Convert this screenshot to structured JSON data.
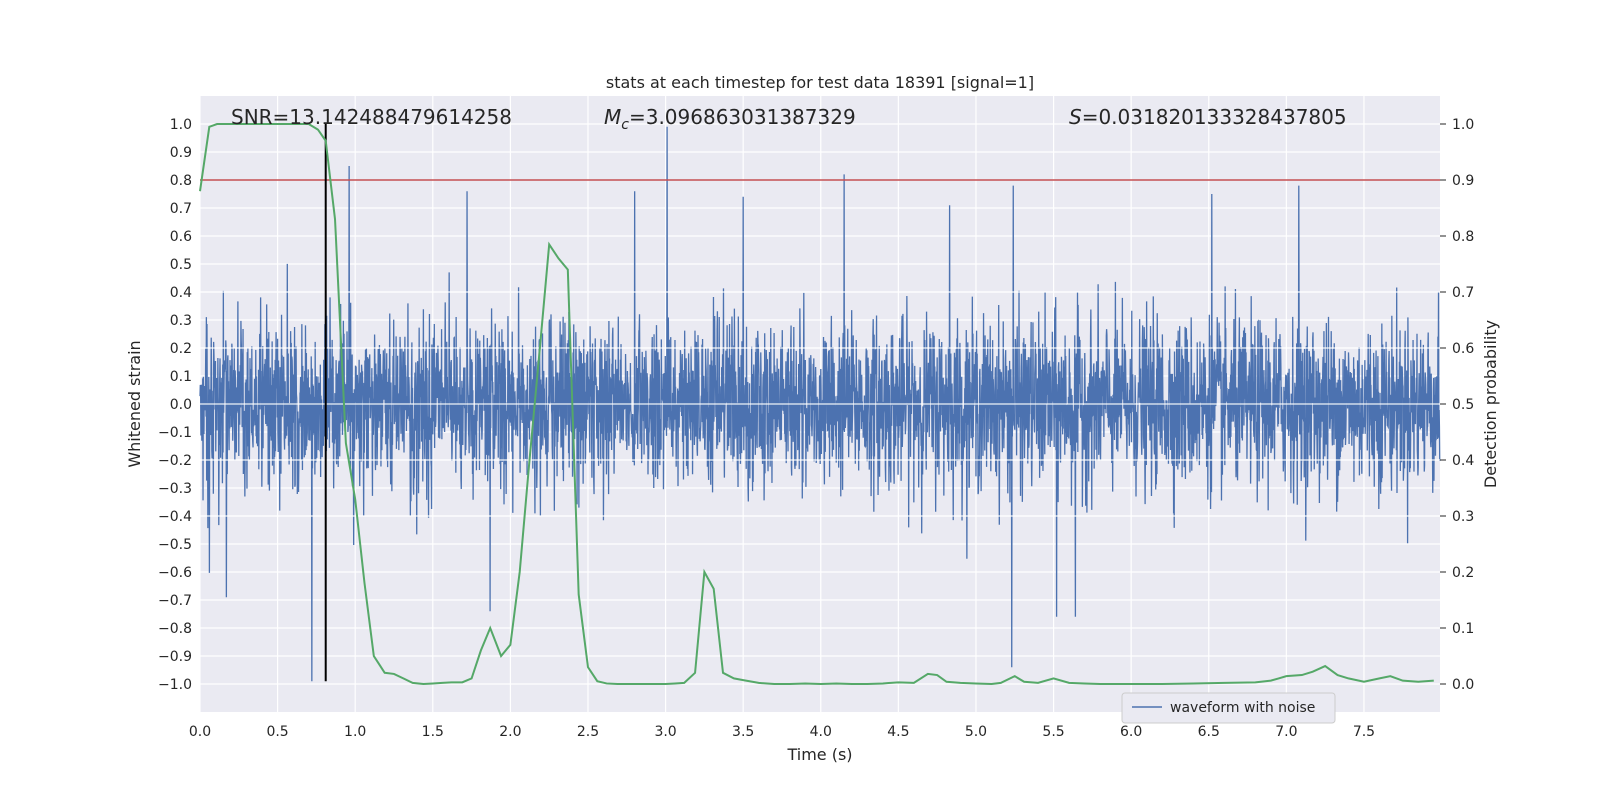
{
  "chart_data": {
    "type": "line",
    "title": "stats at each timestep for test data 18391 [signal=1]",
    "xlabel": "Time (s)",
    "ylabel_left": "Whitened strain",
    "ylabel_right": "Detection probability",
    "xlim": [
      0,
      7.99
    ],
    "ylim_left": [
      -1.1,
      1.1
    ],
    "ylim_right": [
      -0.05,
      1.05
    ],
    "x_ticks": [
      0.0,
      0.5,
      1.0,
      1.5,
      2.0,
      2.5,
      3.0,
      3.5,
      4.0,
      4.5,
      5.0,
      5.5,
      6.0,
      6.5,
      7.0,
      7.5
    ],
    "y_ticks_left": [
      1.0,
      0.9,
      0.8,
      0.7,
      0.6,
      0.5,
      0.4,
      0.3,
      0.2,
      0.1,
      0.0,
      -0.1,
      -0.2,
      -0.3,
      -0.4,
      -0.5,
      -0.6,
      -0.7,
      -0.8,
      -0.9,
      -1.0
    ],
    "y_ticks_right": [
      1.0,
      0.9,
      0.8,
      0.7,
      0.6,
      0.5,
      0.4,
      0.3,
      0.2,
      0.1,
      0.0
    ],
    "grid": true,
    "legend": {
      "placement": "lower-right",
      "entries": [
        "waveform with noise"
      ]
    },
    "annotations": {
      "snr": "SNR=13.142488479614258",
      "mc_symbol": "M",
      "mc_sub": "c",
      "mc_value": "=3.096863031387329",
      "s_symbol": "S",
      "s_value": "=0.031820133328437805"
    },
    "threshold": {
      "axis": "left",
      "y": 0.8,
      "color": "#c44e52"
    },
    "marker_line": {
      "x": 0.81,
      "y_range": [
        -0.99,
        1.0
      ],
      "color": "#000000"
    },
    "series": [
      {
        "name": "waveform with noise",
        "axis": "left",
        "color": "#4c72b0",
        "description_of_envelope": "dense whitened strain noise, typical amplitude about ±0.35",
        "samples_per_second": 512,
        "typical_amplitude": 0.35,
        "spikes": [
          {
            "x": 0.72,
            "y": -0.99
          },
          {
            "x": 0.81,
            "y": 0.47
          },
          {
            "x": 0.96,
            "y": 0.85
          },
          {
            "x": 1.72,
            "y": 0.76
          },
          {
            "x": 1.87,
            "y": -0.74
          },
          {
            "x": 2.8,
            "y": 0.76
          },
          {
            "x": 3.01,
            "y": 0.99
          },
          {
            "x": 3.5,
            "y": 0.74
          },
          {
            "x": 4.15,
            "y": 0.82
          },
          {
            "x": 4.83,
            "y": 0.71
          },
          {
            "x": 5.24,
            "y": 0.78
          },
          {
            "x": 5.23,
            "y": -0.94
          },
          {
            "x": 5.52,
            "y": -0.76
          },
          {
            "x": 5.64,
            "y": -0.76
          },
          {
            "x": 6.52,
            "y": 0.75
          },
          {
            "x": 7.08,
            "y": 0.78
          },
          {
            "x": 0.17,
            "y": -0.69
          }
        ]
      },
      {
        "axis": "right",
        "color": "#55a868",
        "x": [
          0.0,
          0.06,
          0.11,
          0.2,
          0.3,
          0.4,
          0.5,
          0.6,
          0.7,
          0.76,
          0.81,
          0.87,
          0.94,
          1.0,
          1.06,
          1.12,
          1.19,
          1.25,
          1.31,
          1.37,
          1.44,
          1.5,
          1.56,
          1.62,
          1.69,
          1.75,
          1.81,
          1.87,
          1.94,
          2.0,
          2.06,
          2.12,
          2.19,
          2.25,
          2.31,
          2.37,
          2.44,
          2.5,
          2.56,
          2.62,
          2.69,
          2.75,
          2.81,
          2.87,
          2.94,
          3.0,
          3.06,
          3.12,
          3.19,
          3.25,
          3.31,
          3.37,
          3.44,
          3.5,
          3.6,
          3.7,
          3.8,
          3.9,
          4.0,
          4.1,
          4.2,
          4.3,
          4.4,
          4.5,
          4.6,
          4.69,
          4.75,
          4.81,
          4.9,
          5.0,
          5.1,
          5.16,
          5.25,
          5.31,
          5.4,
          5.5,
          5.6,
          5.7,
          5.8,
          5.9,
          6.0,
          6.2,
          6.4,
          6.6,
          6.8,
          6.9,
          6.95,
          7.0,
          7.1,
          7.17,
          7.25,
          7.33,
          7.4,
          7.5,
          7.6,
          7.67,
          7.75,
          7.85,
          7.95
        ],
        "y": [
          0.88,
          0.995,
          1.0,
          1.0,
          1.0,
          1.0,
          1.0,
          1.0,
          1.0,
          0.99,
          0.97,
          0.83,
          0.43,
          0.33,
          0.18,
          0.05,
          0.02,
          0.018,
          0.01,
          0.002,
          0.0,
          0.001,
          0.002,
          0.003,
          0.003,
          0.01,
          0.06,
          0.1,
          0.05,
          0.07,
          0.2,
          0.39,
          0.6,
          0.785,
          0.76,
          0.74,
          0.16,
          0.03,
          0.005,
          0.001,
          0.0,
          0.0,
          0.0,
          0.0,
          0.0,
          0.0,
          0.001,
          0.002,
          0.02,
          0.2,
          0.17,
          0.02,
          0.01,
          0.007,
          0.002,
          0.0,
          0.0,
          0.001,
          0.0,
          0.001,
          0.0,
          0.0,
          0.001,
          0.003,
          0.002,
          0.018,
          0.016,
          0.004,
          0.002,
          0.001,
          0.0,
          0.002,
          0.014,
          0.004,
          0.002,
          0.01,
          0.002,
          0.001,
          0.0,
          0.0,
          0.0,
          0.0,
          0.001,
          0.002,
          0.003,
          0.006,
          0.01,
          0.014,
          0.016,
          0.022,
          0.032,
          0.016,
          0.01,
          0.004,
          0.01,
          0.014,
          0.006,
          0.004,
          0.006
        ]
      }
    ]
  }
}
